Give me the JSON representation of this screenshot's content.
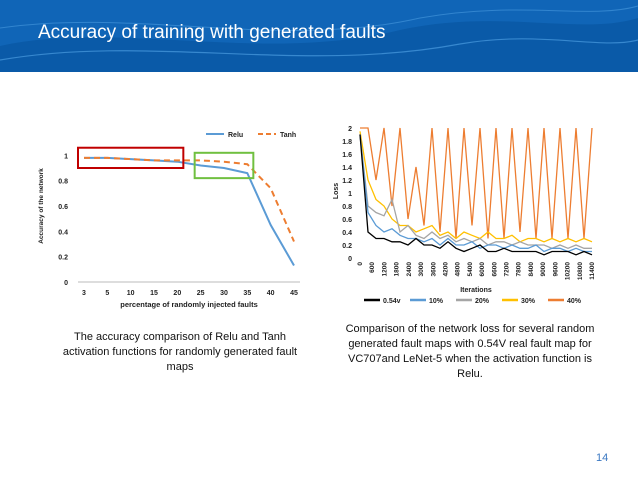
{
  "slide": {
    "title": "Accuracy of training with generated faults",
    "page_number": "14",
    "caption_left": "The accuracy comparison of Relu and Tanh activation functions for randomly generated fault maps",
    "caption_right": "Comparison of the network loss for several random generated fault maps with 0.54V real fault map for VC707and LeNet-5 when the activation function is Relu.",
    "header_color": "#0a5aa8"
  },
  "chart_data": [
    {
      "type": "line",
      "categories": [
        "3",
        "5",
        "10",
        "15",
        "20",
        "25",
        "30",
        "35",
        "40",
        "45"
      ],
      "xlabel": "percentage of randomly injected faults",
      "ylabel": "Accuracy of the network",
      "ylim": [
        0,
        1.2
      ],
      "yticks": [
        "0",
        "0.2",
        "0.4",
        "0.6",
        "0.8",
        "1"
      ],
      "legend_position": "top-right",
      "highlights": [
        {
          "from": "3",
          "to": "20",
          "color": "#c00000"
        },
        {
          "from": "25",
          "to": "35",
          "color": "#70c040"
        }
      ],
      "series": [
        {
          "name": "Relu",
          "color": "#5b9bd5",
          "dashed": false,
          "values": [
            0.98,
            0.98,
            0.97,
            0.96,
            0.95,
            0.92,
            0.9,
            0.86,
            0.45,
            0.13
          ]
        },
        {
          "name": "Tanh",
          "color": "#ed7d31",
          "dashed": true,
          "values": [
            0.98,
            0.98,
            0.97,
            0.96,
            0.96,
            0.96,
            0.95,
            0.93,
            0.74,
            0.32
          ]
        }
      ]
    },
    {
      "type": "line",
      "xlabel": "Iterations",
      "ylabel": "Loss",
      "ylim": [
        0,
        2
      ],
      "yticks": [
        "0",
        "0.2",
        "0.4",
        "0.6",
        "0.8",
        "1",
        "1.2",
        "1.4",
        "1.6",
        "1.8",
        "2"
      ],
      "xticks": [
        "0",
        "600",
        "1200",
        "1800",
        "2400",
        "3000",
        "3600",
        "4200",
        "4800",
        "5400",
        "6000",
        "6600",
        "7200",
        "7800",
        "8400",
        "9000",
        "9600",
        "10200",
        "10800",
        "11400"
      ],
      "legend_position": "bottom",
      "series": [
        {
          "name": "0.54v",
          "color": "#000000",
          "values": [
            1.9,
            0.4,
            0.3,
            0.3,
            0.25,
            0.25,
            0.2,
            0.3,
            0.2,
            0.2,
            0.15,
            0.25,
            0.15,
            0.1,
            0.15,
            0.2,
            0.1,
            0.1,
            0.15,
            0.1,
            0.1,
            0.1,
            0.1,
            0.05,
            0.1,
            0.1,
            0.1,
            0.05,
            0.1,
            0.05
          ]
        },
        {
          "name": "10%",
          "color": "#5b9bd5",
          "values": [
            1.9,
            0.7,
            0.5,
            0.4,
            0.45,
            0.35,
            0.3,
            0.3,
            0.25,
            0.3,
            0.2,
            0.3,
            0.2,
            0.2,
            0.25,
            0.15,
            0.2,
            0.2,
            0.15,
            0.2,
            0.15,
            0.15,
            0.2,
            0.1,
            0.15,
            0.15,
            0.1,
            0.15,
            0.1,
            0.1
          ]
        },
        {
          "name": "20%",
          "color": "#a5a5a5",
          "values": [
            1.9,
            0.8,
            0.7,
            0.65,
            0.9,
            0.4,
            0.5,
            0.35,
            0.3,
            0.4,
            0.3,
            0.35,
            0.25,
            0.3,
            0.25,
            0.3,
            0.2,
            0.25,
            0.25,
            0.2,
            0.25,
            0.2,
            0.2,
            0.2,
            0.15,
            0.2,
            0.15,
            0.2,
            0.15,
            0.15
          ]
        },
        {
          "name": "30%",
          "color": "#ffc000",
          "values": [
            1.95,
            1.2,
            0.9,
            0.8,
            0.6,
            0.5,
            0.5,
            0.4,
            0.45,
            0.5,
            0.35,
            0.4,
            0.3,
            0.4,
            0.35,
            0.3,
            0.4,
            0.3,
            0.3,
            0.35,
            0.25,
            0.3,
            0.3,
            0.25,
            0.3,
            0.25,
            0.3,
            0.25,
            0.3,
            0.25
          ]
        },
        {
          "name": "40%",
          "color": "#ed7d31",
          "values": [
            2,
            2,
            1.2,
            2,
            0.8,
            2,
            0.6,
            1.4,
            0.5,
            2,
            0.4,
            2,
            0.3,
            2,
            0.5,
            2,
            0.3,
            2,
            0.3,
            2,
            0.4,
            2,
            0.3,
            2,
            0.3,
            2,
            0.3,
            2,
            0.3,
            2
          ]
        }
      ]
    }
  ]
}
